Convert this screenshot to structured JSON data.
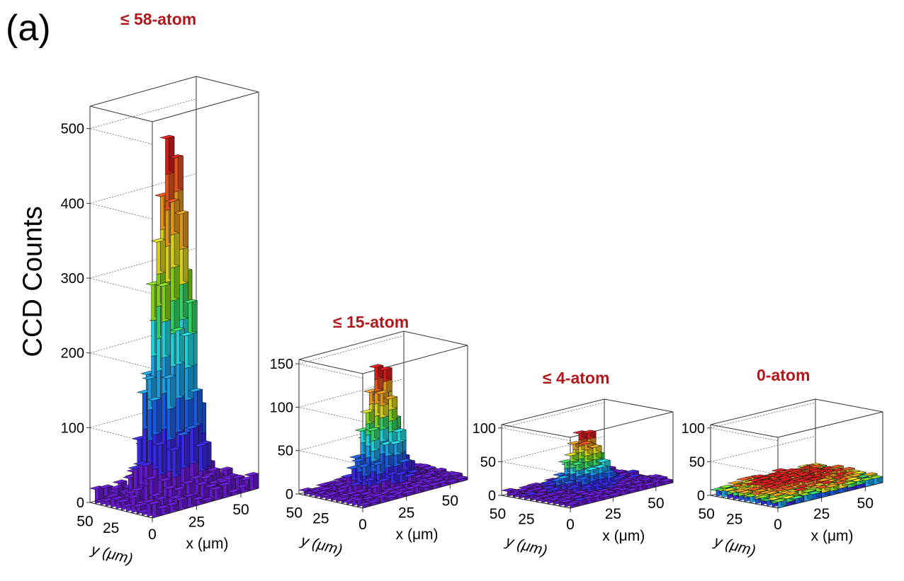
{
  "figure": {
    "panel_label": "(a)",
    "ylabel": "CCD Counts",
    "colors": {
      "title": "#b2171b",
      "colormap": [
        "#6a1bd6",
        "#3b2bf0",
        "#1e62f0",
        "#1eaaf0",
        "#25e0e8",
        "#3ae06a",
        "#8de01e",
        "#e6e01e",
        "#f0a21e",
        "#f0581e",
        "#e01e1e"
      ]
    }
  },
  "chart_data": [
    {
      "type": "lego3d",
      "title": "≤ 58-atom",
      "zlabel": "CCD Counts",
      "xlabel": "x (μm)",
      "ylabel": "y (μm)",
      "zlim": [
        0,
        530
      ],
      "zticks": [
        "0",
        "100",
        "200",
        "300",
        "400",
        "500"
      ],
      "xticks": [
        "0",
        "25",
        "50"
      ],
      "yticks": [
        "50",
        "25"
      ],
      "grid": true,
      "peak": 480,
      "center_row_heights": [
        22,
        16,
        30,
        62,
        120,
        180,
        270,
        360,
        480,
        465,
        300,
        245,
        195,
        150,
        100,
        60,
        38,
        22,
        14
      ]
    },
    {
      "type": "lego3d",
      "title": "≤ 15-atom",
      "xlabel": "x (μm)",
      "ylabel": "y (μm)",
      "zlim": [
        0,
        155
      ],
      "zticks": [
        "0",
        "50",
        "100",
        "150"
      ],
      "xticks": [
        "0",
        "25",
        "50"
      ],
      "yticks": [
        "50",
        "25"
      ],
      "grid": true,
      "peak": 140,
      "center_row_heights": [
        8,
        6,
        10,
        18,
        35,
        70,
        112,
        140,
        132,
        100,
        68,
        40,
        22,
        12,
        8
      ]
    },
    {
      "type": "lego3d",
      "title": "≤ 4-atom",
      "xlabel": "x (μm)",
      "ylabel": "y (μm)",
      "zlim": [
        0,
        105
      ],
      "zticks": [
        "0",
        "50",
        "100"
      ],
      "xticks": [
        "0",
        "25",
        "50"
      ],
      "yticks": [
        "50",
        "25"
      ],
      "grid": true,
      "peak": 85,
      "center_row_heights": [
        5,
        4,
        6,
        10,
        22,
        55,
        85,
        72,
        48,
        28,
        14,
        6,
        4
      ]
    },
    {
      "type": "lego3d",
      "title": "0-atom",
      "xlabel": "x (μm)",
      "ylabel": "y (μm)",
      "zlim": [
        0,
        105
      ],
      "zticks": [
        "0",
        "50",
        "100"
      ],
      "xticks": [
        "0",
        "25",
        "50"
      ],
      "yticks": [
        "50",
        "25"
      ],
      "grid": true,
      "peak": 12,
      "center_row_heights": [
        4,
        6,
        5,
        8,
        10,
        12,
        11,
        9,
        8,
        6,
        5,
        4,
        3
      ]
    }
  ]
}
